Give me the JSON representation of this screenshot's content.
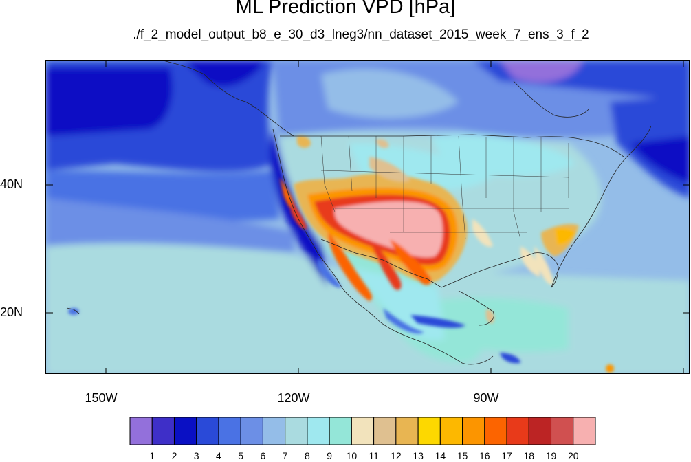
{
  "title": "ML Prediction VPD [hPa]",
  "subtitle": "./f_2_model_output_b8_e_30_d3_lneg3/nn_dataset_2015_week_7_ens_3_f_2",
  "map": {
    "lon_labels": [
      "150W",
      "120W",
      "90W"
    ],
    "lat_labels": [
      "40N",
      "20N"
    ]
  },
  "legend": {
    "levels": [
      "1",
      "2",
      "3",
      "4",
      "5",
      "6",
      "7",
      "8",
      "9",
      "10",
      "11",
      "12",
      "13",
      "14",
      "15",
      "16",
      "17",
      "18",
      "19",
      "20"
    ],
    "colors": [
      "#9370db",
      "#3e2fc8",
      "#0a10c4",
      "#2a4ad8",
      "#4a72e4",
      "#6c8fe6",
      "#94bde8",
      "#aadbe0",
      "#9fe8ef",
      "#94e6d8",
      "#f2e3bc",
      "#dfc090",
      "#e8b552",
      "#fdd800",
      "#fdb800",
      "#fc9500",
      "#fc6400",
      "#e83a1a",
      "#bc2424",
      "#d05050",
      "#f7b0b0"
    ]
  }
}
